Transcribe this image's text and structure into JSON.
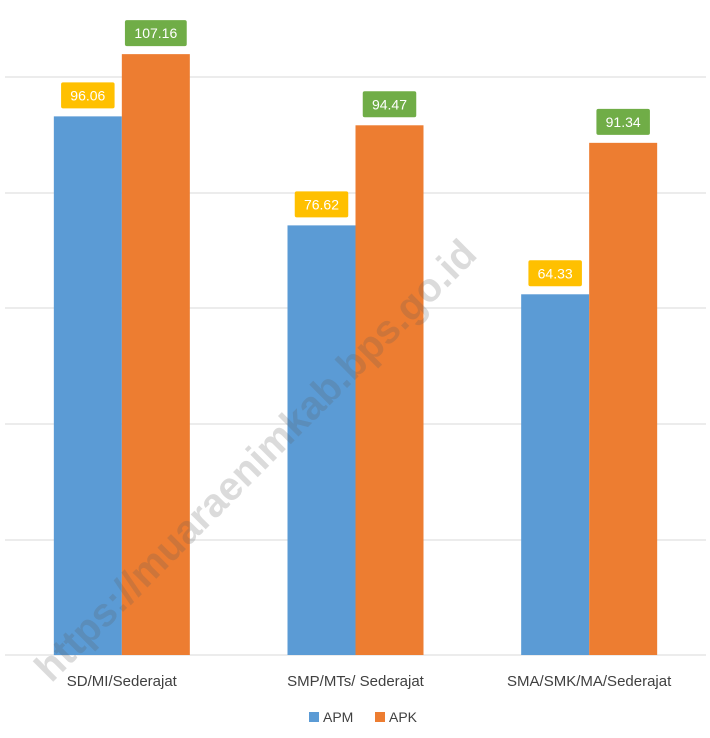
{
  "chart_data": {
    "type": "bar",
    "categories": [
      "SD/MI/Sederajat",
      "SMP/MTs/ Sederajat",
      "SMA/SMK/MA/Sederajat"
    ],
    "series": [
      {
        "name": "APM",
        "values": [
          96.06,
          76.62,
          64.33
        ],
        "color": "#5b9bd5",
        "label_box_color": "#ffc000"
      },
      {
        "name": "APK",
        "values": [
          107.16,
          94.47,
          91.34
        ],
        "color": "#ed7d31",
        "label_box_color": "#70ad47"
      }
    ],
    "ylim": [
      0,
      112
    ],
    "grid": true,
    "legend_position": "bottom-center"
  },
  "watermark": "https://muaraenimkab.bps.go.id"
}
